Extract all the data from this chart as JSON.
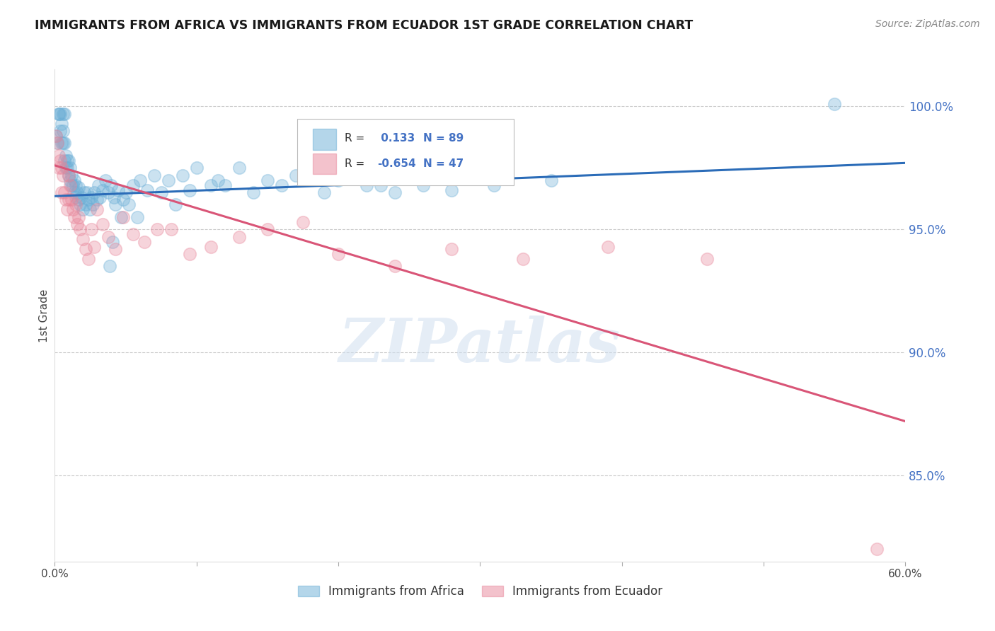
{
  "title": "IMMIGRANTS FROM AFRICA VS IMMIGRANTS FROM ECUADOR 1ST GRADE CORRELATION CHART",
  "source": "Source: ZipAtlas.com",
  "ylabel": "1st Grade",
  "xlim": [
    0.0,
    0.6
  ],
  "ylim": [
    0.815,
    1.015
  ],
  "xtick_positions": [
    0.0,
    0.1,
    0.2,
    0.3,
    0.4,
    0.5,
    0.6
  ],
  "xticklabels": [
    "0.0%",
    "",
    "",
    "",
    "",
    "",
    "60.0%"
  ],
  "yticks_right": [
    0.85,
    0.9,
    0.95,
    1.0
  ],
  "ytick_labels_right": [
    "85.0%",
    "90.0%",
    "95.0%",
    "100.0%"
  ],
  "blue_color": "#6BAED6",
  "pink_color": "#E8869A",
  "legend_blue_R": "0.133",
  "legend_blue_N": "89",
  "legend_pink_R": "-0.654",
  "legend_pink_N": "47",
  "legend_label_blue": "Immigrants from Africa",
  "legend_label_pink": "Immigrants from Ecuador",
  "watermark": "ZIPatlas",
  "blue_line_x": [
    0.0,
    0.6
  ],
  "blue_line_y": [
    0.9635,
    0.977
  ],
  "pink_line_x": [
    0.0,
    0.6
  ],
  "pink_line_y": [
    0.976,
    0.872
  ],
  "blue_scatter_x": [
    0.001,
    0.002,
    0.003,
    0.003,
    0.004,
    0.004,
    0.005,
    0.005,
    0.006,
    0.006,
    0.006,
    0.007,
    0.007,
    0.007,
    0.008,
    0.008,
    0.009,
    0.009,
    0.01,
    0.01,
    0.011,
    0.011,
    0.012,
    0.012,
    0.013,
    0.014,
    0.014,
    0.015,
    0.015,
    0.016,
    0.017,
    0.017,
    0.018,
    0.019,
    0.02,
    0.021,
    0.022,
    0.023,
    0.024,
    0.025,
    0.026,
    0.027,
    0.028,
    0.03,
    0.031,
    0.032,
    0.034,
    0.036,
    0.038,
    0.04,
    0.042,
    0.045,
    0.048,
    0.05,
    0.055,
    0.06,
    0.065,
    0.07,
    0.08,
    0.09,
    0.1,
    0.115,
    0.13,
    0.15,
    0.17,
    0.2,
    0.23,
    0.27,
    0.31,
    0.35,
    0.28,
    0.26,
    0.24,
    0.22,
    0.19,
    0.16,
    0.14,
    0.12,
    0.11,
    0.095,
    0.085,
    0.075,
    0.058,
    0.052,
    0.047,
    0.043,
    0.041,
    0.039,
    0.55
  ],
  "blue_scatter_y": [
    0.988,
    0.985,
    0.997,
    0.997,
    0.997,
    0.99,
    0.993,
    0.985,
    0.99,
    0.985,
    0.997,
    0.978,
    0.985,
    0.997,
    0.975,
    0.98,
    0.975,
    0.978,
    0.972,
    0.978,
    0.97,
    0.975,
    0.968,
    0.972,
    0.968,
    0.965,
    0.97,
    0.963,
    0.968,
    0.965,
    0.962,
    0.967,
    0.96,
    0.963,
    0.958,
    0.965,
    0.96,
    0.965,
    0.962,
    0.958,
    0.963,
    0.96,
    0.965,
    0.962,
    0.968,
    0.963,
    0.966,
    0.97,
    0.965,
    0.968,
    0.963,
    0.966,
    0.962,
    0.965,
    0.968,
    0.97,
    0.966,
    0.972,
    0.97,
    0.972,
    0.975,
    0.97,
    0.975,
    0.97,
    0.972,
    0.97,
    0.968,
    0.972,
    0.968,
    0.97,
    0.966,
    0.968,
    0.965,
    0.968,
    0.965,
    0.968,
    0.965,
    0.968,
    0.968,
    0.966,
    0.96,
    0.965,
    0.955,
    0.96,
    0.955,
    0.96,
    0.945,
    0.935,
    1.001
  ],
  "pink_scatter_x": [
    0.001,
    0.002,
    0.003,
    0.003,
    0.004,
    0.005,
    0.005,
    0.006,
    0.007,
    0.008,
    0.009,
    0.01,
    0.01,
    0.011,
    0.012,
    0.013,
    0.014,
    0.015,
    0.016,
    0.017,
    0.018,
    0.02,
    0.022,
    0.024,
    0.026,
    0.028,
    0.03,
    0.034,
    0.038,
    0.043,
    0.048,
    0.055,
    0.063,
    0.072,
    0.082,
    0.095,
    0.11,
    0.13,
    0.15,
    0.175,
    0.2,
    0.24,
    0.28,
    0.33,
    0.39,
    0.46,
    0.58
  ],
  "pink_scatter_y": [
    0.988,
    0.985,
    0.98,
    0.975,
    0.978,
    0.975,
    0.965,
    0.972,
    0.965,
    0.962,
    0.958,
    0.972,
    0.962,
    0.968,
    0.962,
    0.958,
    0.955,
    0.96,
    0.952,
    0.955,
    0.95,
    0.946,
    0.942,
    0.938,
    0.95,
    0.943,
    0.958,
    0.952,
    0.947,
    0.942,
    0.955,
    0.948,
    0.945,
    0.95,
    0.95,
    0.94,
    0.943,
    0.947,
    0.95,
    0.953,
    0.94,
    0.935,
    0.942,
    0.938,
    0.943,
    0.938,
    0.82
  ]
}
